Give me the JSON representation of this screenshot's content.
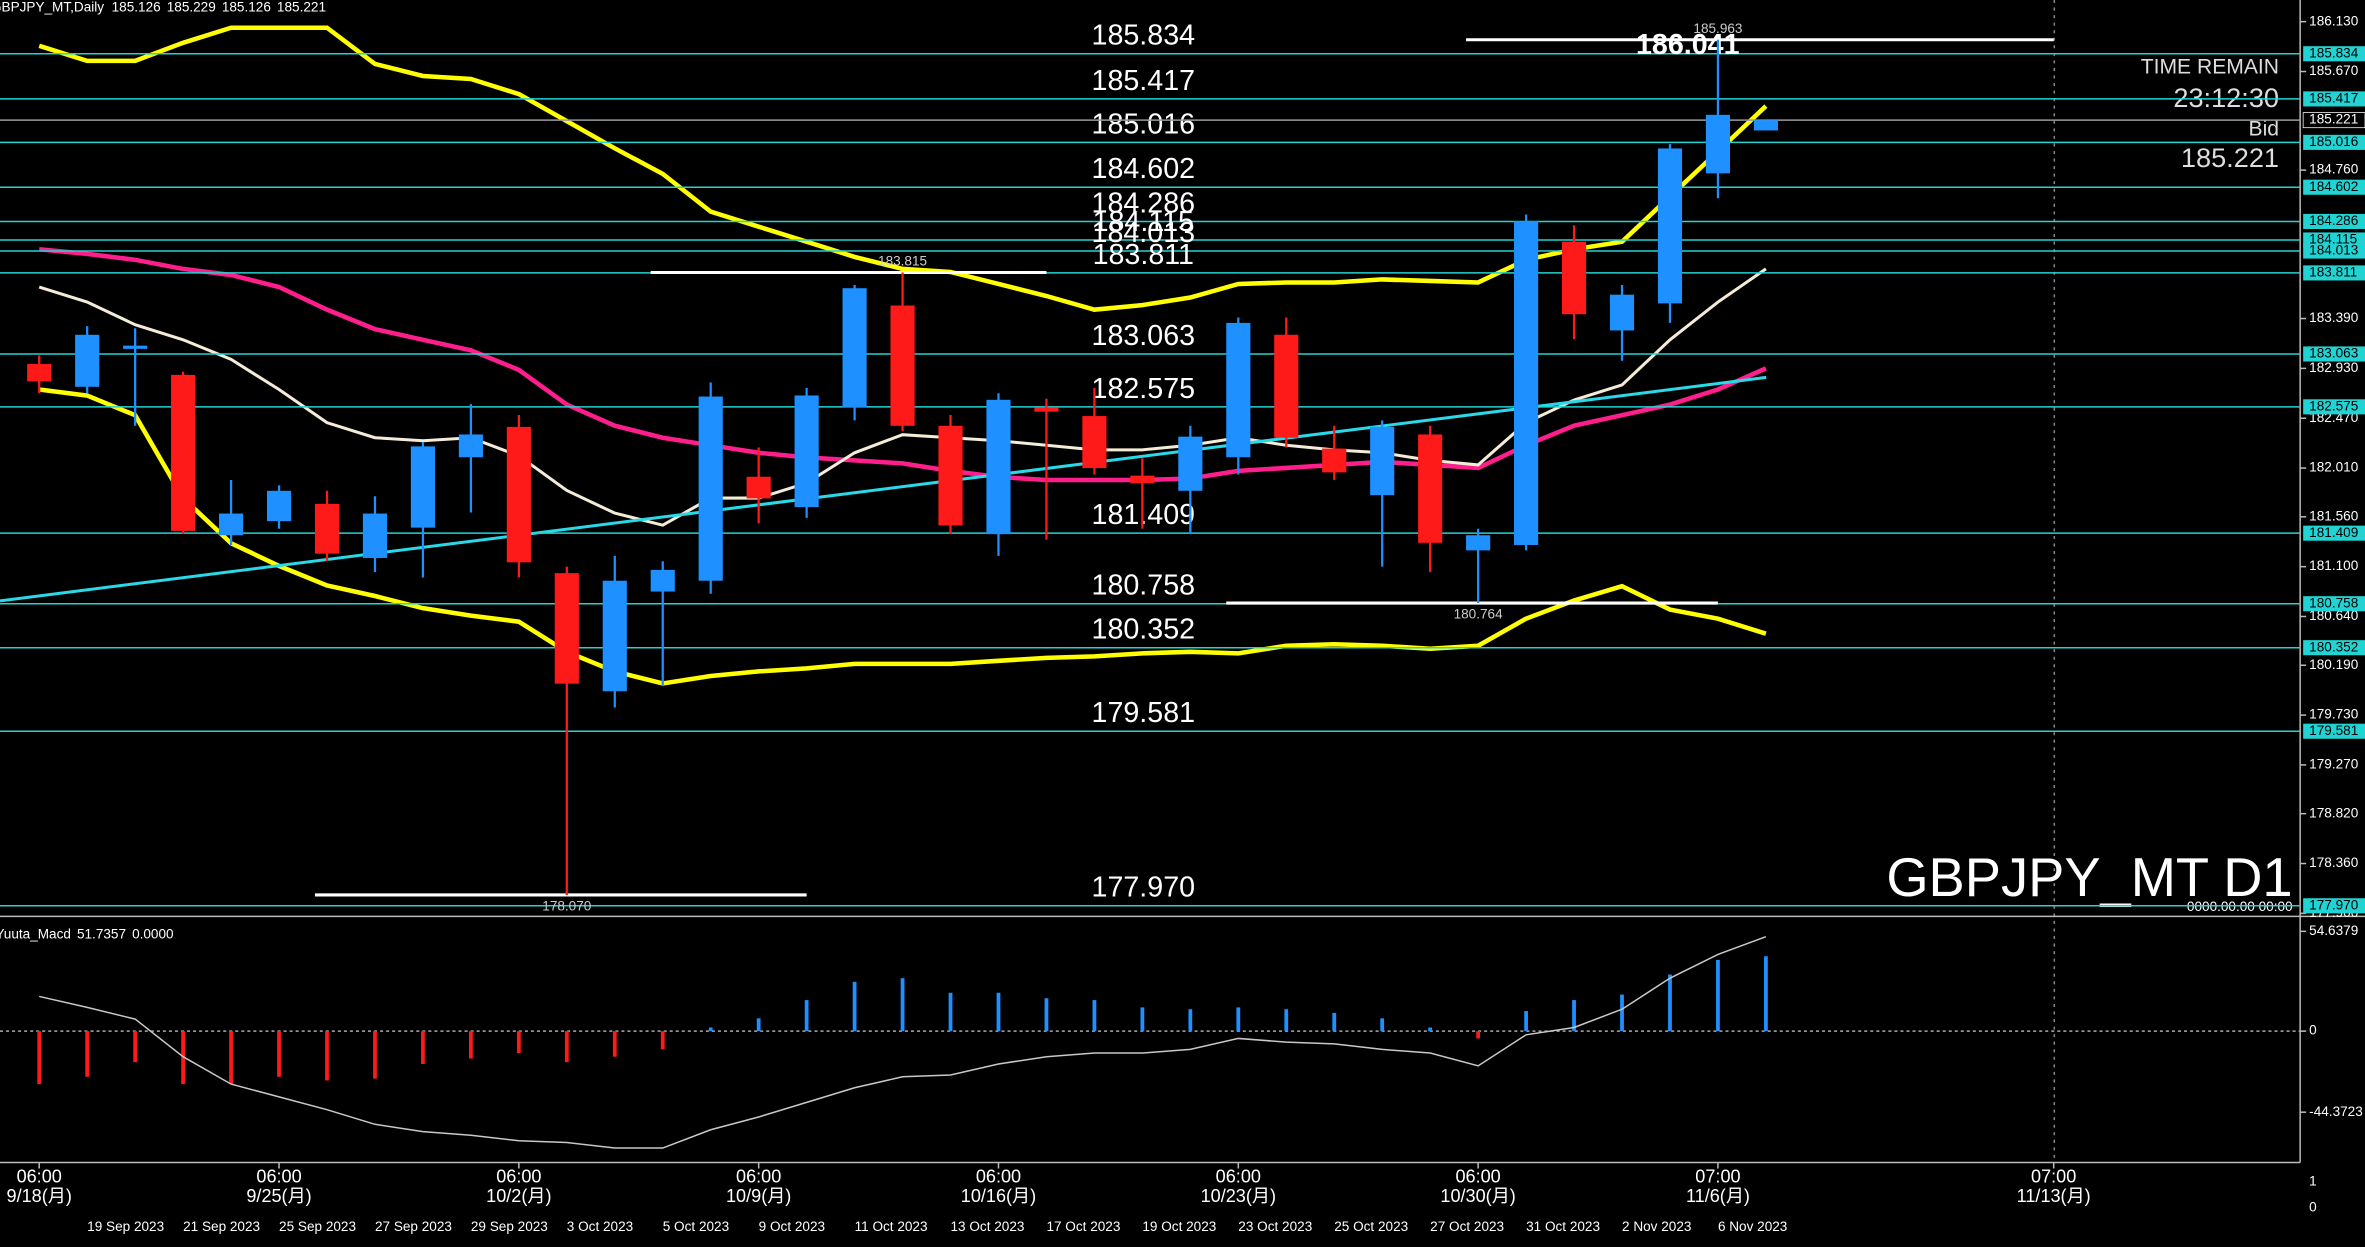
{
  "chart_data": {
    "type": "candlestick",
    "title": "GBPJPY_MT,Daily",
    "symbol_label": "GBPJPY_MT D1",
    "symbol_sublabel": "0000.00.00 00:00",
    "info": {
      "time_remain_label": "TIME REMAIN",
      "time_remain": "23:12:30",
      "bid_label": "Bid"
    },
    "categories": [
      null,
      "19 Sep 2023",
      null,
      "21 Sep 2023",
      null,
      "25 Sep 2023",
      null,
      "27 Sep 2023",
      null,
      "29 Sep 2023",
      null,
      "3 Oct 2023",
      null,
      "5 Oct 2023",
      null,
      "9 Oct 2023",
      null,
      "11 Oct 2023",
      null,
      "13 Oct 2023",
      null,
      "17 Oct 2023",
      null,
      "19 Oct 2023",
      null,
      "23 Oct 2023",
      null,
      "25 Oct 2023",
      null,
      "27 Oct 2023",
      null,
      "31 Oct 2023",
      null,
      "2 Nov 2023",
      null,
      "6 Nov 2023",
      null
    ],
    "time_labels": [
      {
        "time": "06:00",
        "date": "9/18(月)"
      },
      {
        "time": "06:00",
        "date": "9/25(月)"
      },
      {
        "time": "06:00",
        "date": "10/2(月)"
      },
      {
        "time": "06:00",
        "date": "10/9(月)"
      },
      {
        "time": "06:00",
        "date": "10/16(月)"
      },
      {
        "time": "06:00",
        "date": "10/23(月)"
      },
      {
        "time": "06:00",
        "date": "10/30(月)"
      },
      {
        "time": "07:00",
        "date": "11/6(月)"
      },
      {
        "time": "07:00",
        "date": "11/13(月)"
      }
    ],
    "open": [
      182.97,
      182.76,
      183.11,
      182.87,
      181.39,
      181.52,
      181.68,
      181.18,
      181.46,
      182.11,
      182.39,
      181.04,
      179.95,
      180.87,
      180.97,
      181.93,
      181.65,
      182.57,
      183.51,
      182.4,
      181.4,
      182.57,
      182.49,
      181.94,
      181.8,
      182.11,
      183.24,
      182.19,
      181.76,
      182.32,
      181.25,
      181.3,
      184.1,
      183.28,
      183.53,
      184.73,
      185.126
    ],
    "high": [
      183.05,
      183.32,
      183.3,
      182.9,
      181.9,
      181.85,
      181.8,
      181.75,
      182.25,
      182.6,
      182.5,
      181.1,
      181.2,
      181.15,
      182.8,
      182.2,
      182.75,
      183.7,
      183.815,
      182.5,
      182.7,
      182.65,
      182.75,
      182.1,
      182.4,
      183.4,
      183.4,
      182.4,
      182.45,
      182.4,
      181.45,
      184.35,
      184.25,
      183.7,
      185.0,
      185.963,
      185.229
    ],
    "low": [
      182.7,
      182.7,
      182.4,
      181.4,
      181.3,
      181.45,
      181.15,
      181.05,
      181.0,
      181.6,
      181.0,
      178.07,
      179.8,
      180.0,
      180.85,
      181.5,
      181.55,
      182.45,
      182.35,
      181.4,
      181.2,
      181.35,
      181.95,
      181.45,
      181.4,
      181.95,
      182.2,
      181.9,
      181.1,
      181.05,
      180.764,
      181.25,
      183.2,
      183.0,
      183.35,
      184.5,
      185.126
    ],
    "close": [
      182.81,
      183.24,
      183.14,
      181.43,
      181.59,
      181.8,
      181.22,
      181.59,
      182.21,
      182.32,
      181.14,
      180.02,
      180.97,
      181.07,
      182.67,
      181.73,
      182.68,
      183.67,
      182.4,
      181.48,
      182.64,
      182.53,
      182.01,
      181.87,
      182.3,
      183.35,
      182.29,
      181.97,
      182.39,
      181.32,
      181.39,
      184.29,
      183.43,
      183.61,
      184.96,
      185.27,
      185.221
    ],
    "up_color": "#1e90ff",
    "down_color": "#ff1a1a",
    "ylim": [
      177.9,
      186.33
    ],
    "yticks": [
      {
        "value": 186.13,
        "label": "186.130"
      },
      {
        "value": 185.67,
        "label": "185.670"
      },
      {
        "value": 184.76,
        "label": "184.760"
      },
      {
        "value": 183.39,
        "label": "183.390"
      },
      {
        "value": 182.93,
        "label": "182.930"
      },
      {
        "value": 182.47,
        "label": "182.470"
      },
      {
        "value": 182.01,
        "label": "182.010"
      },
      {
        "value": 181.56,
        "label": "181.560"
      },
      {
        "value": 181.1,
        "label": "181.100"
      },
      {
        "value": 180.64,
        "label": "180.640"
      },
      {
        "value": 180.19,
        "label": "180.190"
      },
      {
        "value": 179.73,
        "label": "179.730"
      },
      {
        "value": 179.27,
        "label": "179.270"
      },
      {
        "value": 178.82,
        "label": "178.820"
      },
      {
        "value": 178.36,
        "label": "178.360"
      },
      {
        "value": 177.9,
        "label": "177.900"
      }
    ],
    "level_color": "#22d3d3",
    "levels": [
      {
        "value": 185.834,
        "label": "185.834"
      },
      {
        "value": 185.417,
        "label": "185.417"
      },
      {
        "value": 185.016,
        "label": "185.016"
      },
      {
        "value": 184.602,
        "label": "184.602"
      },
      {
        "value": 184.286,
        "label": "184.286"
      },
      {
        "value": 184.115,
        "label": "184.115"
      },
      {
        "value": 184.013,
        "label": "184.013"
      },
      {
        "value": 183.811,
        "label": "183.811"
      },
      {
        "value": 183.063,
        "label": "183.063"
      },
      {
        "value": 182.575,
        "label": "182.575"
      },
      {
        "value": 181.409,
        "label": "181.409"
      },
      {
        "value": 180.758,
        "label": "180.758"
      },
      {
        "value": 180.352,
        "label": "180.352"
      },
      {
        "value": 179.581,
        "label": "179.581"
      },
      {
        "value": 177.97,
        "label": "177.970"
      }
    ],
    "swing_labels": [
      {
        "value": 185.963,
        "label": "185.963"
      },
      {
        "value": 183.815,
        "label": "183.815"
      },
      {
        "value": 180.764,
        "label": "180.764"
      },
      {
        "value": 178.07,
        "label": "178.070"
      }
    ],
    "projection_label": 186.041,
    "series": [
      {
        "color": "#ffff00",
        "width": 3,
        "values": [
          185.907,
          185.768,
          185.768,
          185.935,
          186.074,
          186.074,
          186.074,
          185.74,
          185.629,
          185.601,
          185.462,
          185.212,
          184.961,
          184.725,
          184.377,
          184.238,
          184.099,
          183.959,
          183.848,
          183.82,
          183.709,
          183.598,
          183.472,
          183.514,
          183.584,
          183.709,
          183.723,
          183.723,
          183.751,
          183.737,
          183.723,
          183.932,
          184.029,
          184.099,
          184.516,
          184.933,
          185.351
        ]
      },
      {
        "color": "#ffff00",
        "width": 3,
        "values": [
          182.735,
          182.679,
          182.498,
          181.733,
          181.316,
          181.107,
          180.926,
          180.829,
          180.717,
          180.648,
          180.592,
          180.314,
          180.133,
          180.022,
          180.091,
          180.133,
          180.161,
          180.203,
          180.203,
          180.203,
          180.231,
          180.258,
          180.272,
          180.3,
          180.314,
          180.3,
          180.37,
          180.384,
          180.37,
          180.342,
          180.37,
          180.62,
          180.787,
          180.92,
          180.704,
          180.62,
          180.481
        ]
      },
      {
        "color": "#ff1e8c",
        "width": 3,
        "values": [
          184.029,
          183.987,
          183.932,
          183.848,
          183.792,
          183.681,
          183.472,
          183.292,
          183.194,
          183.097,
          182.916,
          182.596,
          182.401,
          182.29,
          182.22,
          182.151,
          182.109,
          182.081,
          182.053,
          181.984,
          181.928,
          181.9,
          181.9,
          181.9,
          181.914,
          181.984,
          182.011,
          182.039,
          182.067,
          182.039,
          182.011,
          182.22,
          182.401,
          182.498,
          182.596,
          182.735,
          182.93
        ]
      },
      {
        "color": "#f5ecd8",
        "width": 2,
        "values": [
          183.681,
          183.542,
          183.333,
          183.194,
          183.013,
          182.735,
          182.429,
          182.29,
          182.262,
          182.29,
          182.123,
          181.803,
          181.594,
          181.483,
          181.733,
          181.733,
          181.872,
          182.151,
          182.318,
          182.29,
          182.262,
          182.22,
          182.178,
          182.178,
          182.22,
          182.29,
          182.22,
          182.178,
          182.151,
          182.081,
          182.039,
          182.429,
          182.638,
          182.777,
          183.194,
          183.542,
          183.848
        ]
      }
    ],
    "macd": {
      "title": "Yuuta_Macd",
      "readout": [
        51.7357,
        {
          "value": 0,
          "label": "0.0000"
        }
      ],
      "ylim": [
        -71.9,
        58.7
      ],
      "yticks": [
        54.6379,
        0,
        {
          "value": -44.3723,
          "label": "-44.3723"
        }
      ],
      "histogram": [
        -29,
        -25,
        -17,
        -29,
        -29,
        -25,
        -27,
        -26,
        -18,
        -15,
        -12,
        -17,
        -14,
        -10,
        2,
        7,
        17,
        27,
        29,
        21,
        21,
        18,
        17,
        13,
        12,
        13,
        12,
        10,
        7,
        2,
        -4,
        11,
        17,
        20,
        31,
        39,
        41
      ],
      "line": {
        "color": "#c8c8c8",
        "values": [
          19,
          13,
          6.6,
          -14,
          -29,
          -36,
          -43,
          -51,
          -55,
          -57,
          -60,
          -61,
          -64,
          -64,
          -54,
          -47,
          -39,
          -31,
          -25,
          -24,
          -18,
          -14,
          -12,
          -12,
          -10,
          -4,
          -6,
          -7,
          -10,
          -12,
          -19,
          -2,
          2,
          12,
          29,
          42,
          51.7357
        ]
      }
    },
    "extra_pane_ticks": [
      1,
      0
    ]
  }
}
